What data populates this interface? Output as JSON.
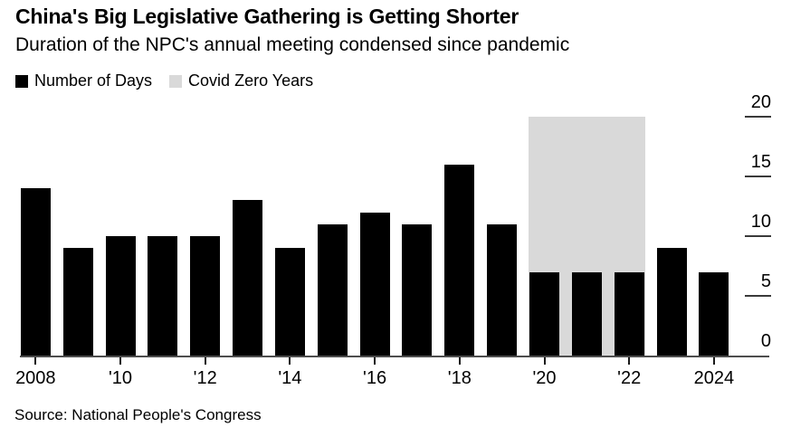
{
  "chart_data": {
    "type": "bar",
    "title": "China's Big Legislative Gathering is Getting Shorter",
    "subtitle": "Duration of the NPC's annual meeting condensed since pandemic",
    "source": "Source: National People's Congress",
    "categories": [
      2008,
      2009,
      2010,
      2011,
      2012,
      2013,
      2014,
      2015,
      2016,
      2017,
      2018,
      2019,
      2020,
      2021,
      2022,
      2023,
      2024
    ],
    "series": [
      {
        "name": "Number of Days",
        "color": "#000000",
        "values": [
          14,
          9,
          10,
          10,
          10,
          13,
          9,
          11,
          12,
          11,
          16,
          11,
          7,
          7,
          7,
          9,
          7
        ]
      }
    ],
    "band": {
      "name": "Covid Zero Years",
      "color": "#d9d9d9",
      "from_year": 2020,
      "to_year": 2022,
      "top_value": 20
    },
    "legend": [
      {
        "label": "Number of Days",
        "color": "#000000"
      },
      {
        "label": "Covid Zero Years",
        "color": "#d9d9d9"
      }
    ],
    "y_axis": {
      "side": "right",
      "ticks": [
        0,
        5,
        10,
        15,
        20
      ],
      "min": 0,
      "max": 20,
      "grid": false
    },
    "x_axis": {
      "tick_years": [
        2008,
        2010,
        2012,
        2014,
        2016,
        2018,
        2020,
        2022,
        2024
      ],
      "tick_labels": [
        "2008",
        "'10",
        "'12",
        "'14",
        "'16",
        "'18",
        "'20",
        "'22",
        "2024"
      ]
    }
  }
}
